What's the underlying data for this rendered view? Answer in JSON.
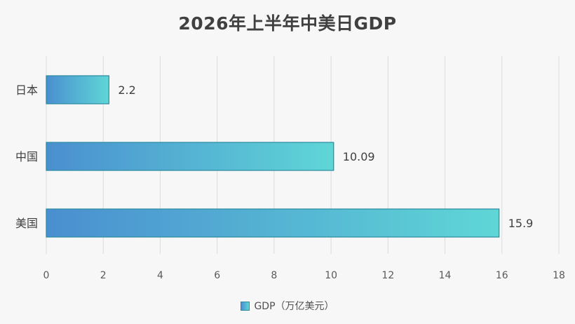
{
  "chart_data": {
    "type": "bar",
    "orientation": "horizontal",
    "title": "2026年上半年中美日GDP",
    "categories": [
      "日本",
      "中国",
      "美国"
    ],
    "series": [
      {
        "name": "GDP（万亿美元）",
        "values": [
          2.2,
          10.09,
          15.9
        ]
      }
    ],
    "data_labels": [
      "2.2",
      "10.09",
      "15.9"
    ],
    "xlim": [
      0,
      18
    ],
    "xticks": [
      0,
      2,
      4,
      6,
      8,
      10,
      12,
      14,
      16,
      18
    ],
    "grid": "vertical",
    "legend_position": "bottom",
    "colors": {
      "bar_start": "#4a8fd0",
      "bar_end": "#5fd6d6",
      "bar_stroke": "#2a8aa0",
      "grid": "#dcdcdc"
    }
  }
}
